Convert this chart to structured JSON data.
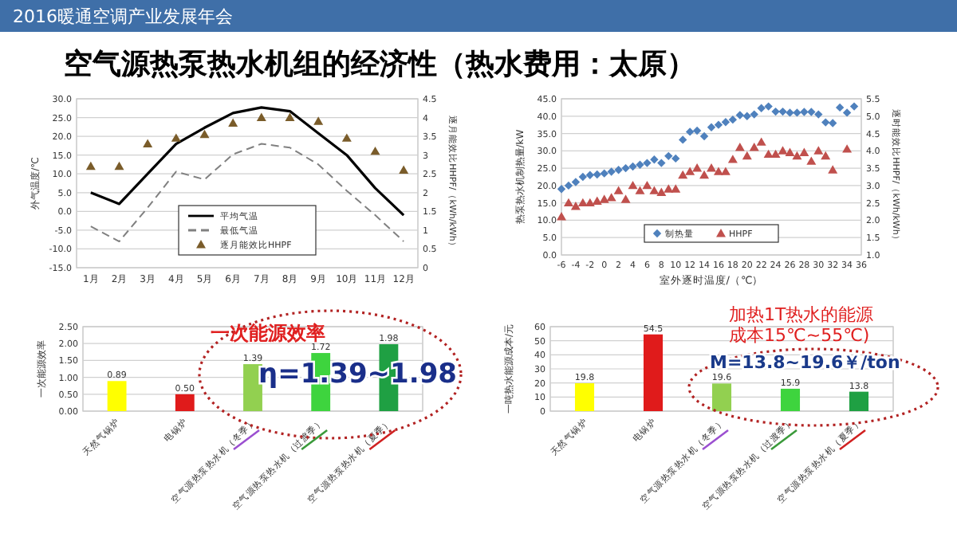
{
  "chart_data": [
    {
      "type": "line",
      "title": "空气源热泵热水机组的经济性（热水费用：太原）",
      "annotations": [
        "2016暖通空调产业发展年会"
      ],
      "ylabel": "外气温度/℃",
      "y2label": "逐月能效比HHPF/（kWh/kWh）",
      "categories": [
        "1月",
        "2月",
        "3月",
        "4月",
        "5月",
        "6月",
        "7月",
        "8月",
        "9月",
        "10月",
        "11月",
        "12月"
      ],
      "ylim": [
        -15,
        30
      ],
      "yticks": [
        {
          "value": -15,
          "label": "-15.0"
        },
        {
          "value": -10,
          "label": "-10.0"
        },
        {
          "value": -5,
          "label": "-5.0"
        },
        {
          "value": 0,
          "label": "0.0"
        },
        {
          "value": 5,
          "label": "5.0"
        },
        {
          "value": 10,
          "label": "10.0"
        },
        {
          "value": 15,
          "label": "15.0"
        },
        {
          "value": 20,
          "label": "20.0"
        },
        {
          "value": 25,
          "label": "25.0"
        },
        {
          "value": 30,
          "label": "30.0"
        }
      ],
      "y2lim": [
        0,
        4.5
      ],
      "y2ticks": [
        0,
        0.5,
        1,
        1.5,
        2,
        2.5,
        3,
        3.5,
        4,
        4.5
      ],
      "grid": "y",
      "legend": "bottom",
      "series": [
        {
          "name": "平均气温",
          "color": "#000000",
          "line_style": "solid",
          "values": [
            5,
            2,
            10,
            18,
            22.3,
            26.2,
            27.7,
            26.7,
            20.8,
            15,
            6.2,
            -1
          ]
        },
        {
          "name": "最低气温",
          "color": "#808080",
          "line_style": "dashed",
          "values": [
            -4,
            -8,
            1,
            10.6,
            8.5,
            15.2,
            18,
            17,
            12.5,
            5.5,
            -1,
            -8
          ]
        },
        {
          "name": "逐月能效比HHPF",
          "type": "scatter",
          "marker": "triangle",
          "axis": "y2",
          "color": "#7a5c2a",
          "values": [
            2.7,
            2.7,
            3.3,
            3.45,
            3.55,
            3.85,
            4,
            4,
            3.9,
            3.45,
            3.1,
            2.6
          ]
        }
      ]
    },
    {
      "type": "scatter",
      "xlabel": "室外逐时温度/（℃）",
      "ylabel": "热泵热水机制热量/kW",
      "y2label": "逐时能效比HHPF/（kWh/kWh）",
      "xlim": [
        -6,
        36
      ],
      "xticks": [
        -6,
        -4,
        -2,
        {
          "value": 0,
          "label": "0"
        },
        2,
        4,
        6,
        8,
        10,
        12,
        14,
        16,
        18,
        20,
        22,
        24,
        26,
        28,
        30,
        32,
        34,
        36
      ],
      "ylim": [
        0,
        45
      ],
      "yticks": [
        {
          "value": 0,
          "label": "0.0"
        },
        {
          "value": 5,
          "label": "5.0"
        },
        {
          "value": 10,
          "label": "10.0"
        },
        {
          "value": 15,
          "label": "15.0"
        },
        {
          "value": 20,
          "label": "20.0"
        },
        {
          "value": 25,
          "label": "25.0"
        },
        {
          "value": 30,
          "label": "30.0"
        },
        {
          "value": 35,
          "label": "35.0"
        },
        {
          "value": 40,
          "label": "40.0"
        },
        {
          "value": 45,
          "label": "45.0"
        }
      ],
      "y2lim": [
        1,
        5.5
      ],
      "y2ticks": [
        {
          "value": 1,
          "label": "1.0"
        },
        1.5,
        {
          "value": 2,
          "label": "2.0"
        },
        2.5,
        {
          "value": 3,
          "label": "3.0"
        },
        3.5,
        {
          "value": 4,
          "label": "4.0"
        },
        4.5,
        {
          "value": 5,
          "label": "5.0"
        },
        5.5
      ],
      "grid": "y",
      "legend": "bottom",
      "x": [
        -6,
        -5,
        -4,
        -3,
        -2,
        -1,
        0,
        1,
        2,
        3,
        4,
        5,
        6,
        7,
        8,
        9,
        10,
        11,
        12,
        13,
        14,
        15,
        16,
        17,
        18,
        19,
        20,
        21,
        22,
        23,
        24,
        25,
        26,
        27,
        28,
        29,
        30,
        31,
        32,
        33,
        34,
        35
      ],
      "series": [
        {
          "name": "制热量",
          "marker": "diamond",
          "color": "#4f81bd",
          "values": [
            19,
            20,
            21,
            22.5,
            23,
            23.2,
            23.5,
            24,
            24.5,
            25,
            25.5,
            26,
            26.5,
            27.5,
            26.5,
            28.5,
            27.8,
            33.2,
            35.5,
            35.8,
            34.2,
            36.8,
            37.5,
            38.3,
            39,
            40.3,
            40,
            40.5,
            42.3,
            42.8,
            41.3,
            41.3,
            41,
            41,
            41.2,
            41.2,
            40.5,
            38.2,
            38,
            42.5,
            41,
            42.8
          ]
        },
        {
          "name": "HHPF",
          "marker": "triangle",
          "axis": "y2",
          "color": "#c0504d",
          "values": [
            2.1,
            2.5,
            2.4,
            2.5,
            2.5,
            2.55,
            2.6,
            2.65,
            2.85,
            2.6,
            3,
            2.85,
            3,
            2.85,
            2.8,
            2.9,
            2.9,
            3.3,
            3.4,
            3.5,
            3.3,
            3.5,
            3.4,
            3.4,
            3.75,
            4.1,
            3.85,
            4.1,
            4.25,
            3.9,
            3.9,
            4,
            3.95,
            3.85,
            3.95,
            3.7,
            4,
            3.85,
            3.45,
            null,
            4.05,
            null
          ]
        }
      ]
    },
    {
      "type": "bar",
      "ylabel": "一次能源效率",
      "categories": [
        "天然气锅炉",
        "电锅炉",
        "空气源热泵热水机（冬季）",
        "空气源热泵热水机（过渡季）",
        "空气源热泵热水机（夏季）"
      ],
      "values": [
        0.89,
        0.5,
        1.39,
        1.72,
        1.98
      ],
      "value_labels": [
        "0.89",
        "0.50",
        "1.39",
        "1.72",
        "1.98"
      ],
      "colors": [
        "#ffff00",
        "#e01b1b",
        "#92d050",
        "#3ed43e",
        "#1fa043"
      ],
      "ylim": [
        0,
        2.5
      ],
      "yticks": [
        {
          "value": 0,
          "label": "0.00"
        },
        {
          "value": 0.5,
          "label": "0.50"
        },
        {
          "value": 1,
          "label": "1.00"
        },
        {
          "value": 1.5,
          "label": "1.50"
        },
        {
          "value": 2,
          "label": "2.00"
        },
        {
          "value": 2.5,
          "label": "2.50"
        }
      ],
      "grid": "y",
      "annotations": [
        "一次能源效率",
        "η=1.39~1.98"
      ]
    },
    {
      "type": "bar",
      "ylabel": "一吨热水能源成本/元",
      "categories": [
        "天然气锅炉",
        "电锅炉",
        "空气源热泵热水机（冬季）",
        "空气源热泵热水机（过渡季）",
        "空气源热泵热水机（夏季）"
      ],
      "values": [
        19.8,
        54.5,
        19.6,
        15.9,
        13.8
      ],
      "data_labels": true,
      "colors": [
        "#ffff00",
        "#e01b1b",
        "#92d050",
        "#3ed43e",
        "#1fa043"
      ],
      "ylim": [
        0,
        60
      ],
      "yticks": [
        0,
        10,
        20,
        30,
        40,
        50,
        60
      ],
      "grid": "y",
      "annotations": [
        "加热1T热水的能源成本15℃~55℃)",
        "M=13.8~19.6￥/ton"
      ]
    }
  ]
}
